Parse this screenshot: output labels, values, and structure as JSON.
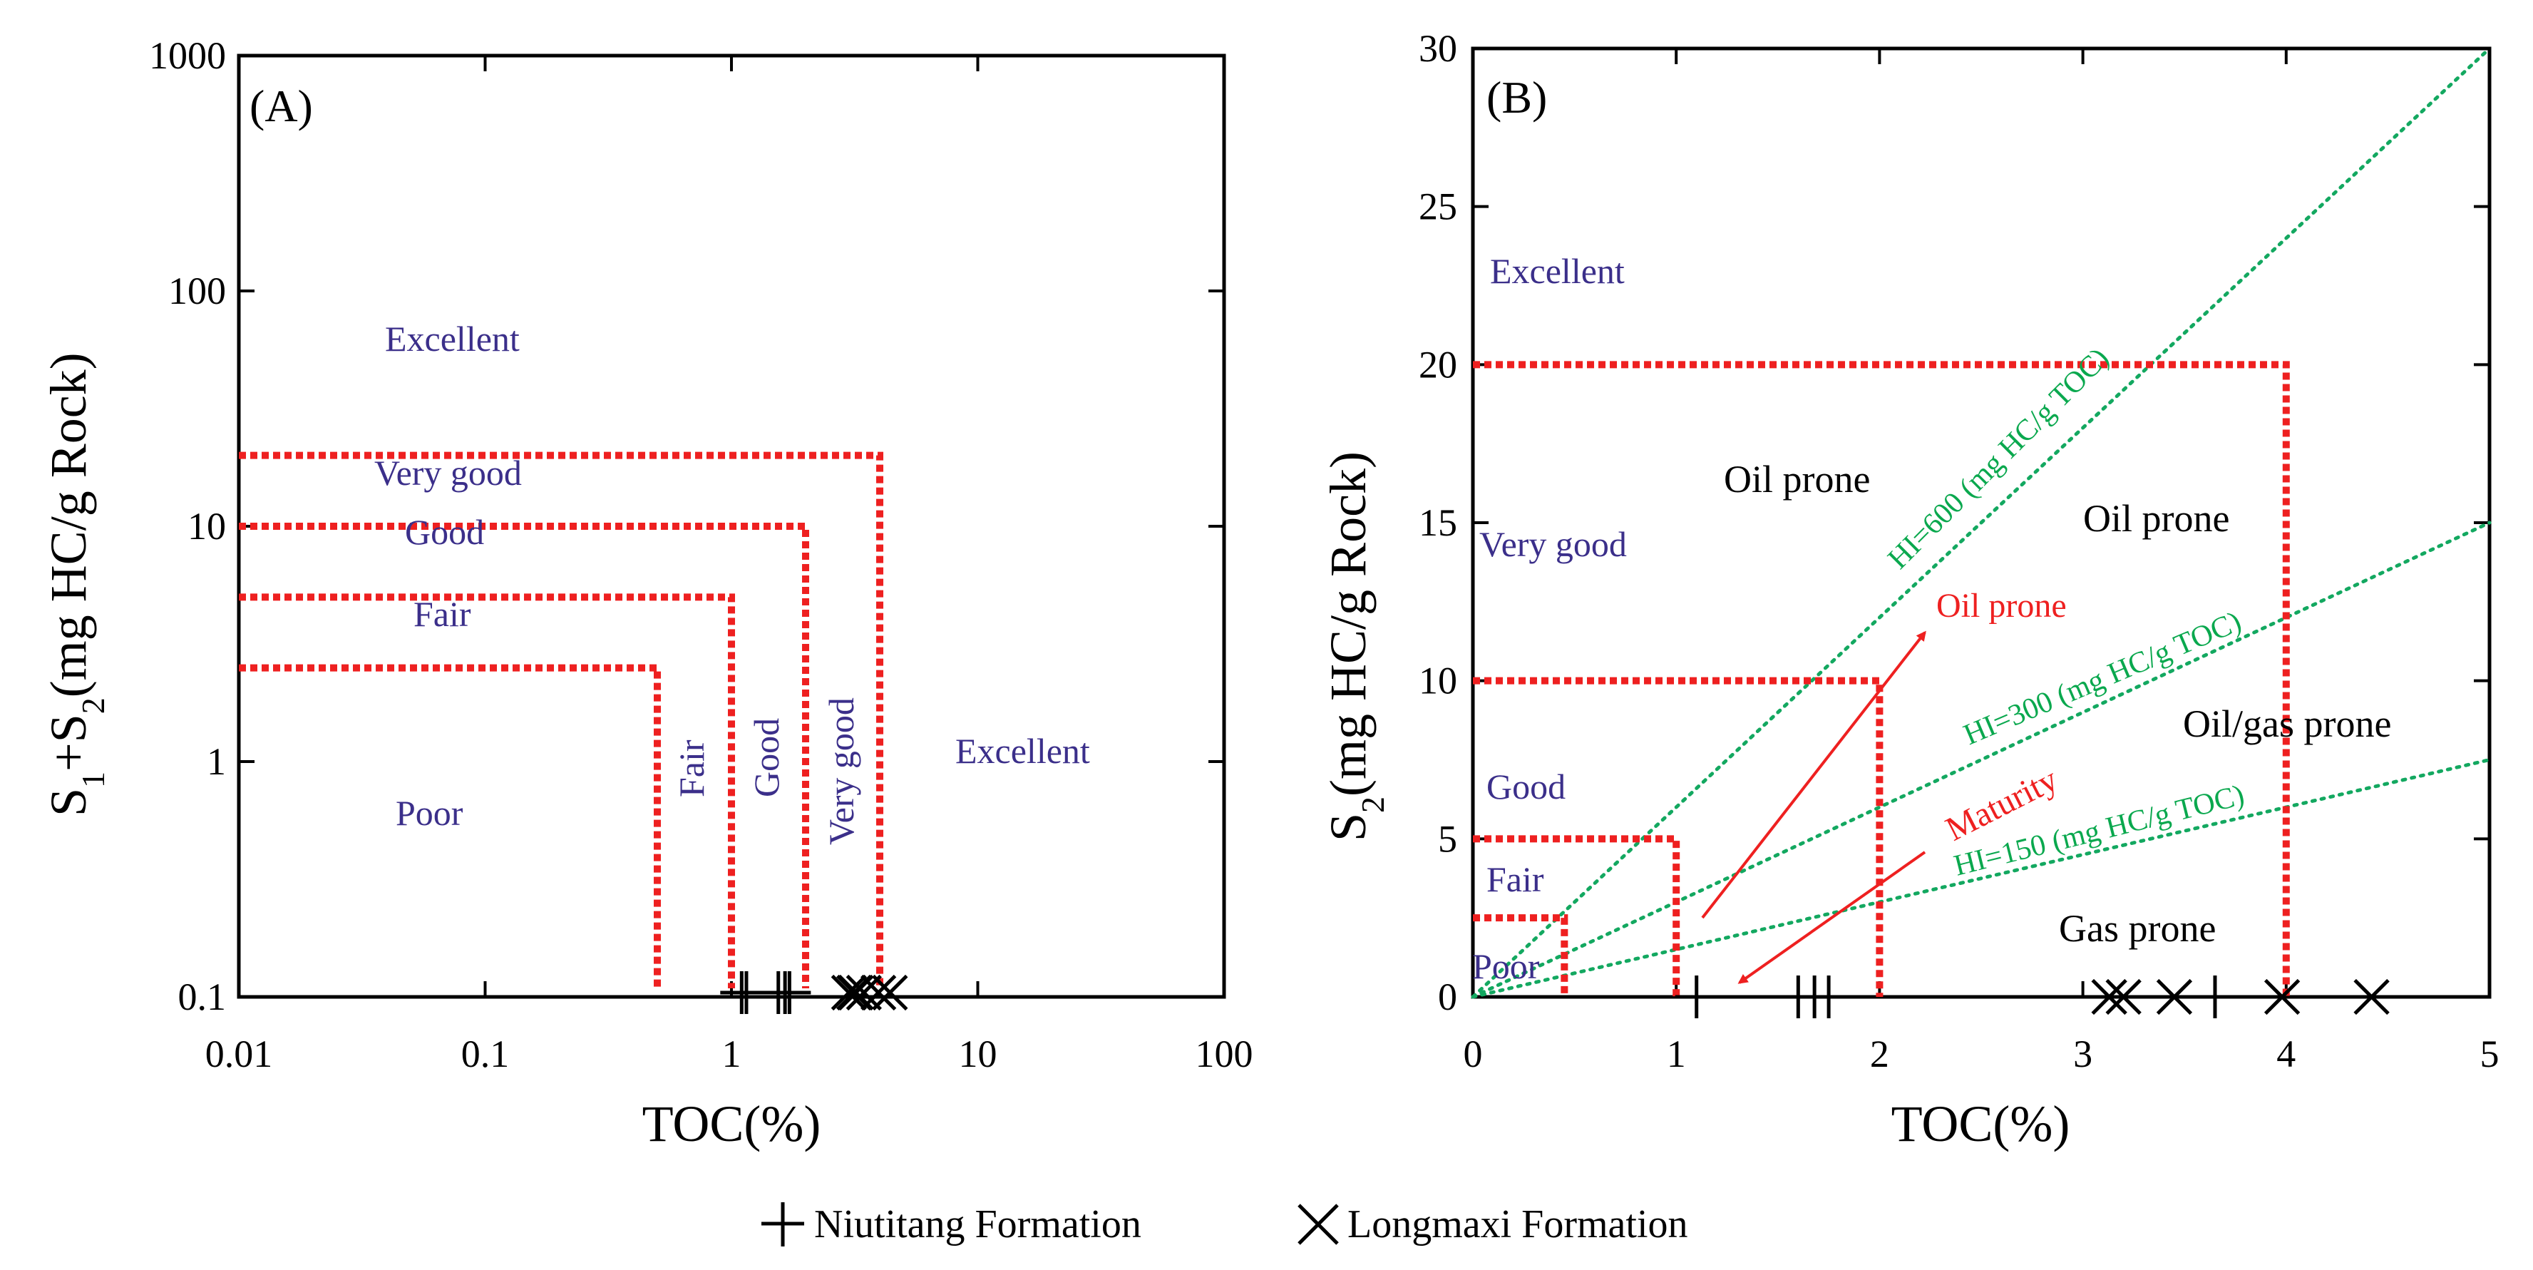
{
  "chart_data": [
    {
      "type": "scatter",
      "panel_label": "(A)",
      "xlabel": "TOC(%)",
      "ylabel_parts": {
        "s1": "S",
        "sub1": "1",
        "plus": "+S",
        "sub2": "2",
        "rest": "(mg HC/g Rock)"
      },
      "xscale": "log",
      "yscale": "log",
      "xlim": [
        0.01,
        100
      ],
      "ylim": [
        0.1,
        1000
      ],
      "x_ticks": [
        {
          "v": 0.01,
          "label": "0.01"
        },
        {
          "v": 0.1,
          "label": "0.1"
        },
        {
          "v": 1,
          "label": "1"
        },
        {
          "v": 10,
          "label": "10"
        },
        {
          "v": 100,
          "label": "100"
        }
      ],
      "y_ticks": [
        {
          "v": 0.1,
          "label": "0.1"
        },
        {
          "v": 1,
          "label": "1"
        },
        {
          "v": 10,
          "label": "10"
        },
        {
          "v": 100,
          "label": "100"
        },
        {
          "v": 1000,
          "label": "1000"
        }
      ],
      "thresholds": [
        {
          "toc": 0.5,
          "s": 2.5
        },
        {
          "toc": 1,
          "s": 5
        },
        {
          "toc": 2,
          "s": 10
        },
        {
          "toc": 4,
          "s": 20
        }
      ],
      "region_labels": {
        "poor": "Poor",
        "fair_h": "Fair",
        "good_h": "Good",
        "very_good_h": "Very good",
        "excellent_top": "Excellent",
        "fair_v": "Fair",
        "good_v": "Good",
        "very_good_v": "Very good",
        "excellent_right": "Excellent"
      },
      "series": [
        {
          "name": "Niutitang Formation",
          "marker": "plus",
          "points": [
            {
              "x": 1.1,
              "y": 0.1
            },
            {
              "x": 1.15,
              "y": 0.1
            },
            {
              "x": 1.55,
              "y": 0.1
            },
            {
              "x": 1.65,
              "y": 0.1
            },
            {
              "x": 1.72,
              "y": 0.1
            }
          ]
        },
        {
          "name": "Longmaxi Formation",
          "marker": "cross",
          "points": [
            {
              "x": 3.0,
              "y": 0.1
            },
            {
              "x": 3.15,
              "y": 0.1
            },
            {
              "x": 3.2,
              "y": 0.1
            },
            {
              "x": 3.45,
              "y": 0.1
            },
            {
              "x": 3.95,
              "y": 0.1
            },
            {
              "x": 4.4,
              "y": 0.1
            }
          ]
        }
      ]
    },
    {
      "type": "scatter",
      "panel_label": "(B)",
      "xlabel": "TOC(%)",
      "ylabel_parts": {
        "s1": "S",
        "sub1": "2",
        "rest": "(mg HC/g Rock)"
      },
      "xscale": "linear",
      "yscale": "linear",
      "xlim": [
        0,
        5
      ],
      "ylim": [
        0,
        30
      ],
      "x_ticks": [
        {
          "v": 0,
          "label": "0"
        },
        {
          "v": 1,
          "label": "1"
        },
        {
          "v": 2,
          "label": "2"
        },
        {
          "v": 3,
          "label": "3"
        },
        {
          "v": 4,
          "label": "4"
        },
        {
          "v": 5,
          "label": "5"
        }
      ],
      "y_ticks": [
        {
          "v": 0,
          "label": "0"
        },
        {
          "v": 5,
          "label": "5"
        },
        {
          "v": 10,
          "label": "10"
        },
        {
          "v": 15,
          "label": "15"
        },
        {
          "v": 20,
          "label": "20"
        },
        {
          "v": 25,
          "label": "25"
        },
        {
          "v": 30,
          "label": "30"
        }
      ],
      "thresholds": [
        {
          "toc": 0.45,
          "s": 2.5
        },
        {
          "toc": 1,
          "s": 5
        },
        {
          "toc": 2,
          "s": 10
        },
        {
          "toc": 4,
          "s": 20
        }
      ],
      "hi_lines": [
        {
          "hi": 600,
          "label": "HI=600 (mg HC/g TOC)"
        },
        {
          "hi": 300,
          "label": "HI=300 (mg HC/g TOC)"
        },
        {
          "hi": 150,
          "label": "HI=150 (mg HC/g TOC)"
        }
      ],
      "region_labels": {
        "excellent": "Excellent",
        "very_good": "Very good",
        "good": "Good",
        "fair": "Fair",
        "poor": "Poor",
        "oil_prone_upper": "Oil prone",
        "oil_prone_right": "Oil prone",
        "oil_prone_red": "Oil prone",
        "maturity": "Maturity",
        "oil_gas_prone": "Oil/gas prone",
        "gas_prone": "Gas prone"
      },
      "series": [
        {
          "name": "Niutitang Formation",
          "marker": "plus",
          "points": [
            {
              "x": 1.1,
              "y": 0
            },
            {
              "x": 1.6,
              "y": 0
            },
            {
              "x": 1.68,
              "y": 0
            },
            {
              "x": 1.75,
              "y": 0
            },
            {
              "x": 3.65,
              "y": 0
            }
          ]
        },
        {
          "name": "Longmaxi Formation",
          "marker": "cross",
          "points": [
            {
              "x": 3.13,
              "y": 0
            },
            {
              "x": 3.2,
              "y": 0
            },
            {
              "x": 3.45,
              "y": 0
            },
            {
              "x": 3.98,
              "y": 0
            },
            {
              "x": 4.42,
              "y": 0
            }
          ]
        }
      ]
    }
  ],
  "legend": [
    {
      "label": "Niutitang Formation",
      "marker": "plus"
    },
    {
      "label": "Longmaxi Formation",
      "marker": "cross"
    }
  ],
  "colors": {
    "threshold": "#ee2020",
    "hi_line": "#13a860",
    "region_text": "#3b2f8a",
    "arrow": "#ee2020"
  }
}
